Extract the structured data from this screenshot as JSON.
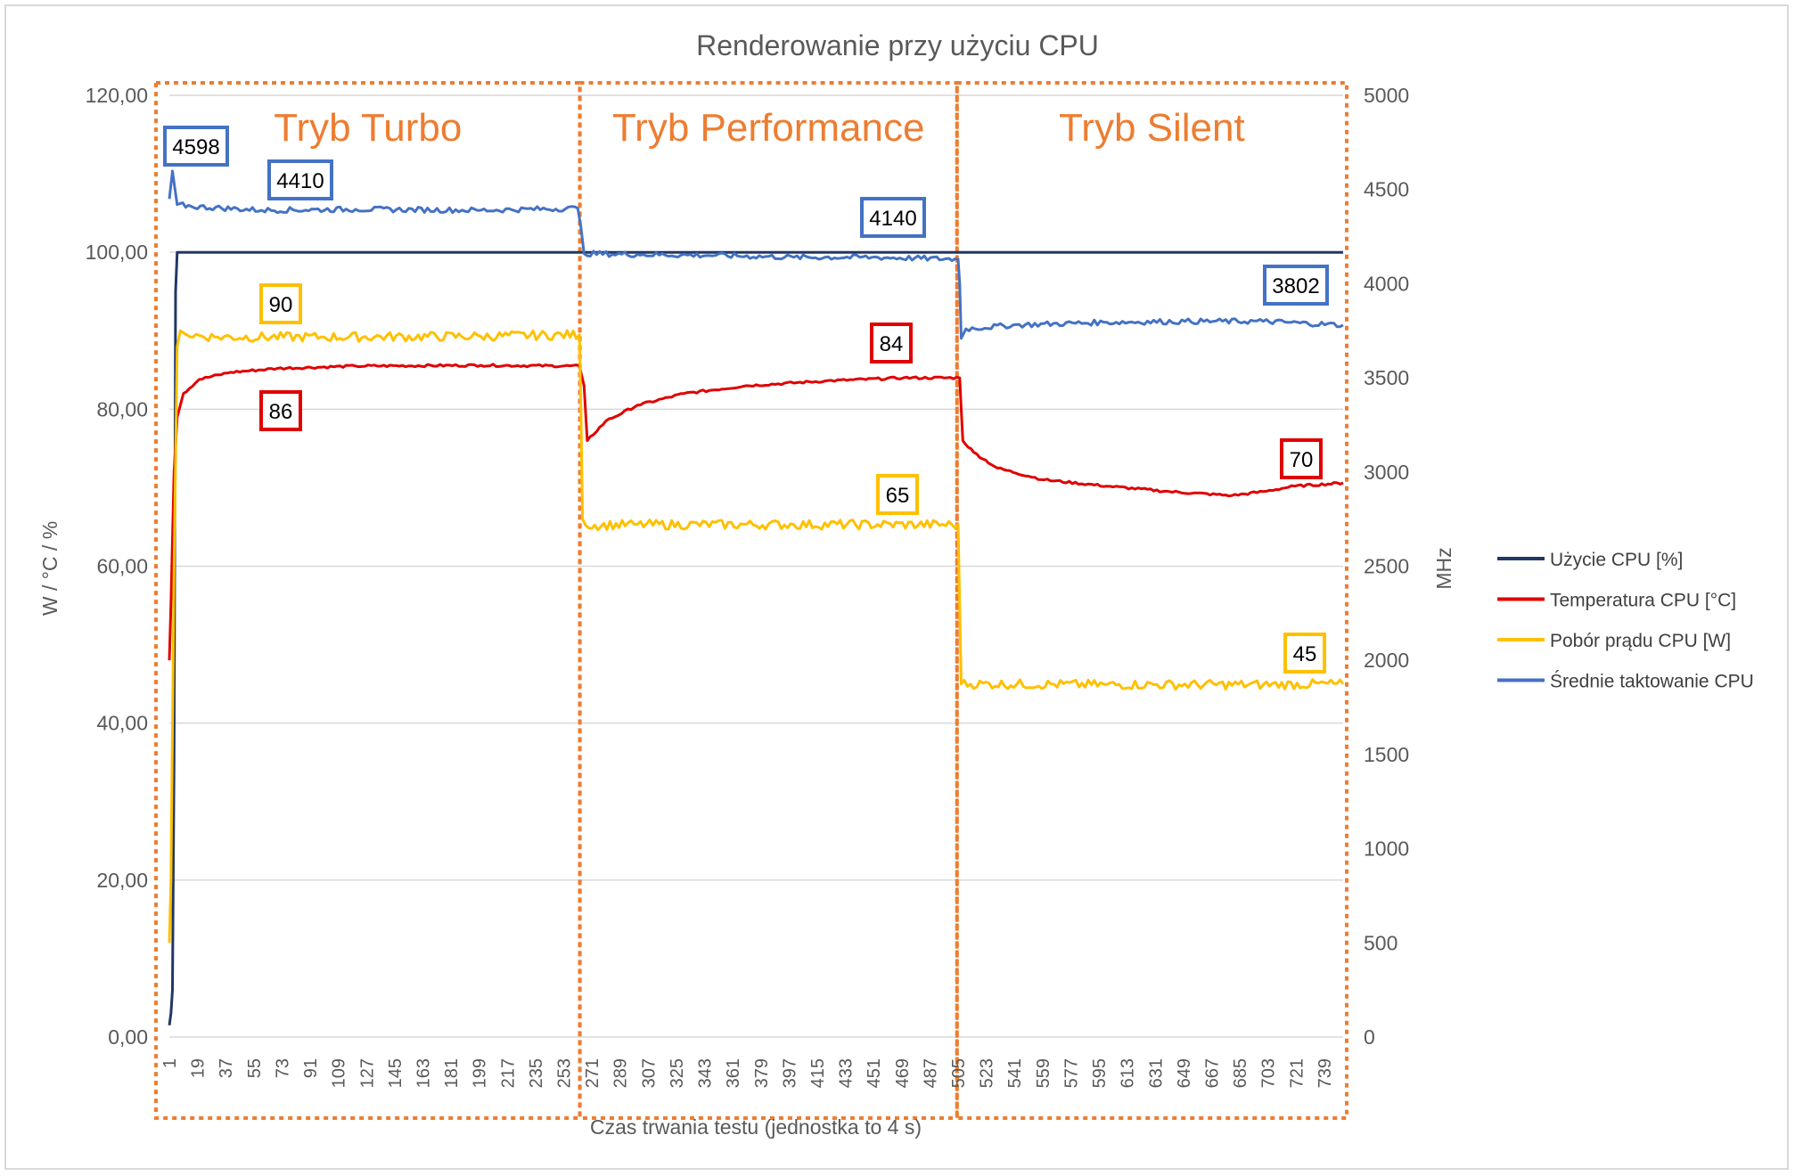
{
  "chart_data": {
    "type": "line",
    "title": "Renderowanie przy użyciu CPU",
    "xlabel": "Czas trwania testu (jednostka to 4 s)",
    "ylabel": "W / °C / %",
    "y2label": "MHz",
    "ylim": [
      0,
      120
    ],
    "y2lim": [
      0,
      5000
    ],
    "x_range": [
      1,
      751
    ],
    "x_tick_labels": [
      "1",
      "19",
      "37",
      "55",
      "73",
      "91",
      "109",
      "127",
      "145",
      "163",
      "181",
      "199",
      "217",
      "235",
      "253",
      "271",
      "289",
      "307",
      "325",
      "343",
      "361",
      "379",
      "397",
      "415",
      "433",
      "451",
      "469",
      "487",
      "505",
      "523",
      "541",
      "559",
      "577",
      "595",
      "613",
      "631",
      "649",
      "667",
      "685",
      "703",
      "721",
      "739"
    ],
    "y_tick_labels": [
      "0,00",
      "20,00",
      "40,00",
      "60,00",
      "80,00",
      "100,00",
      "120,00"
    ],
    "y2_tick_labels": [
      "0",
      "500",
      "1000",
      "1500",
      "2000",
      "2500",
      "3000",
      "3500",
      "4000",
      "4500",
      "5000"
    ],
    "grid": true,
    "legend_position": "right",
    "regions": [
      {
        "label": "Tryb Turbo",
        "x_start": 1,
        "x_end": 265
      },
      {
        "label": "Tryb Performance",
        "x_start": 265,
        "x_end": 506
      },
      {
        "label": "Tryb Silent",
        "x_start": 506,
        "x_end": 751
      }
    ],
    "series": [
      {
        "name": "Użycie CPU [%]",
        "axis": "left",
        "color": "#203864",
        "points": [
          [
            1,
            1.5
          ],
          [
            2,
            3
          ],
          [
            3,
            6
          ],
          [
            4,
            35
          ],
          [
            5,
            95
          ],
          [
            6,
            100
          ],
          [
            751,
            100
          ]
        ]
      },
      {
        "name": "Temperatura CPU [°C]",
        "axis": "left",
        "color": "#E00000",
        "points": [
          [
            1,
            48
          ],
          [
            2,
            55
          ],
          [
            4,
            72
          ],
          [
            6,
            79
          ],
          [
            10,
            82
          ],
          [
            20,
            83.8
          ],
          [
            40,
            84.7
          ],
          [
            70,
            85.2
          ],
          [
            120,
            85.5
          ],
          [
            200,
            85.6
          ],
          [
            263,
            85.5
          ],
          [
            266,
            83
          ],
          [
            268,
            76
          ],
          [
            280,
            78.5
          ],
          [
            300,
            80.5
          ],
          [
            330,
            82
          ],
          [
            370,
            83
          ],
          [
            420,
            83.6
          ],
          [
            470,
            84
          ],
          [
            506,
            84
          ],
          [
            507,
            80
          ],
          [
            508,
            76
          ],
          [
            515,
            74.5
          ],
          [
            530,
            72.5
          ],
          [
            560,
            71
          ],
          [
            600,
            70.2
          ],
          [
            640,
            69.5
          ],
          [
            680,
            69
          ],
          [
            700,
            69.5
          ],
          [
            720,
            70.2
          ],
          [
            751,
            70.6
          ]
        ]
      },
      {
        "name": "Pobór prądu CPU [W]",
        "axis": "left",
        "color": "#FFC000",
        "points": [
          [
            1,
            12
          ],
          [
            2,
            20
          ],
          [
            4,
            60
          ],
          [
            6,
            88
          ],
          [
            8,
            90
          ],
          [
            12,
            89.5
          ],
          [
            30,
            89.2
          ],
          [
            100,
            89.2
          ],
          [
            200,
            89.3
          ],
          [
            263,
            89.5
          ],
          [
            264,
            80
          ],
          [
            265,
            66
          ],
          [
            267,
            65.2
          ],
          [
            300,
            65.3
          ],
          [
            400,
            65.3
          ],
          [
            505,
            65.3
          ],
          [
            506,
            55
          ],
          [
            507,
            45
          ],
          [
            600,
            44.9
          ],
          [
            700,
            44.9
          ],
          [
            751,
            45
          ]
        ]
      },
      {
        "name": "Średnie taktowanie CPU",
        "axis": "right",
        "color": "#4472C4",
        "points": [
          [
            1,
            4450
          ],
          [
            3,
            4598
          ],
          [
            6,
            4420
          ],
          [
            15,
            4410
          ],
          [
            60,
            4390
          ],
          [
            120,
            4395
          ],
          [
            200,
            4390
          ],
          [
            262,
            4400
          ],
          [
            264,
            4300
          ],
          [
            266,
            4160
          ],
          [
            300,
            4155
          ],
          [
            350,
            4150
          ],
          [
            400,
            4140
          ],
          [
            450,
            4140
          ],
          [
            505,
            4130
          ],
          [
            506,
            4000
          ],
          [
            507,
            3710
          ],
          [
            510,
            3760
          ],
          [
            540,
            3780
          ],
          [
            600,
            3795
          ],
          [
            650,
            3800
          ],
          [
            700,
            3800
          ],
          [
            751,
            3780
          ]
        ]
      }
    ],
    "annotations": [
      {
        "text": "4598",
        "series": "Średnie taktowanie CPU",
        "color": "#4472C4"
      },
      {
        "text": "4410",
        "series": "Średnie taktowanie CPU",
        "color": "#4472C4"
      },
      {
        "text": "4140",
        "series": "Średnie taktowanie CPU",
        "color": "#4472C4"
      },
      {
        "text": "3802",
        "series": "Średnie taktowanie CPU",
        "color": "#4472C4"
      },
      {
        "text": "90",
        "series": "Pobór prądu CPU [W]",
        "color": "#FFC000"
      },
      {
        "text": "65",
        "series": "Pobór prądu CPU [W]",
        "color": "#FFC000"
      },
      {
        "text": "45",
        "series": "Pobór prądu CPU [W]",
        "color": "#FFC000"
      },
      {
        "text": "86",
        "series": "Temperatura CPU [°C]",
        "color": "#E00000"
      },
      {
        "text": "84",
        "series": "Temperatura CPU [°C]",
        "color": "#E00000"
      },
      {
        "text": "70",
        "series": "Temperatura CPU [°C]",
        "color": "#E00000"
      }
    ]
  }
}
